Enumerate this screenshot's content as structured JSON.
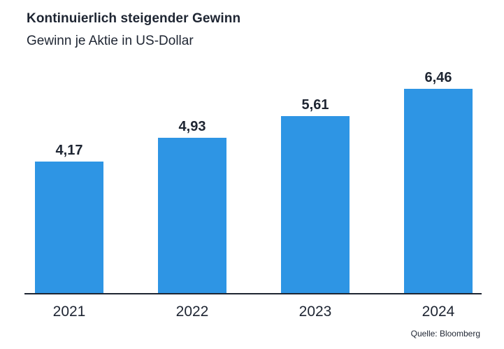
{
  "header": {
    "title": "Kontinuierlich steigender Gewinn",
    "subtitle": "Gewinn je Aktie in US-Dollar"
  },
  "chart_data": {
    "type": "bar",
    "title": "Kontinuierlich steigender Gewinn",
    "subtitle": "Gewinn je Aktie in US-Dollar",
    "categories": [
      "2021",
      "2022",
      "2023",
      "2024"
    ],
    "values": [
      4.17,
      4.93,
      5.61,
      6.46
    ],
    "value_labels": [
      "4,17",
      "4,93",
      "5,61",
      "6,46"
    ],
    "xlabel": "",
    "ylabel": "",
    "ylim": [
      0,
      7
    ],
    "grid": false,
    "legend": false,
    "bar_color": "#2E95E4",
    "axis_color": "#1E2532",
    "label_color": "#1E2532"
  },
  "footer": {
    "source": "Quelle: Bloomberg"
  },
  "colors": {
    "background": "#FFFFFF",
    "text": "#1E2532",
    "bar": "#2E95E4"
  }
}
